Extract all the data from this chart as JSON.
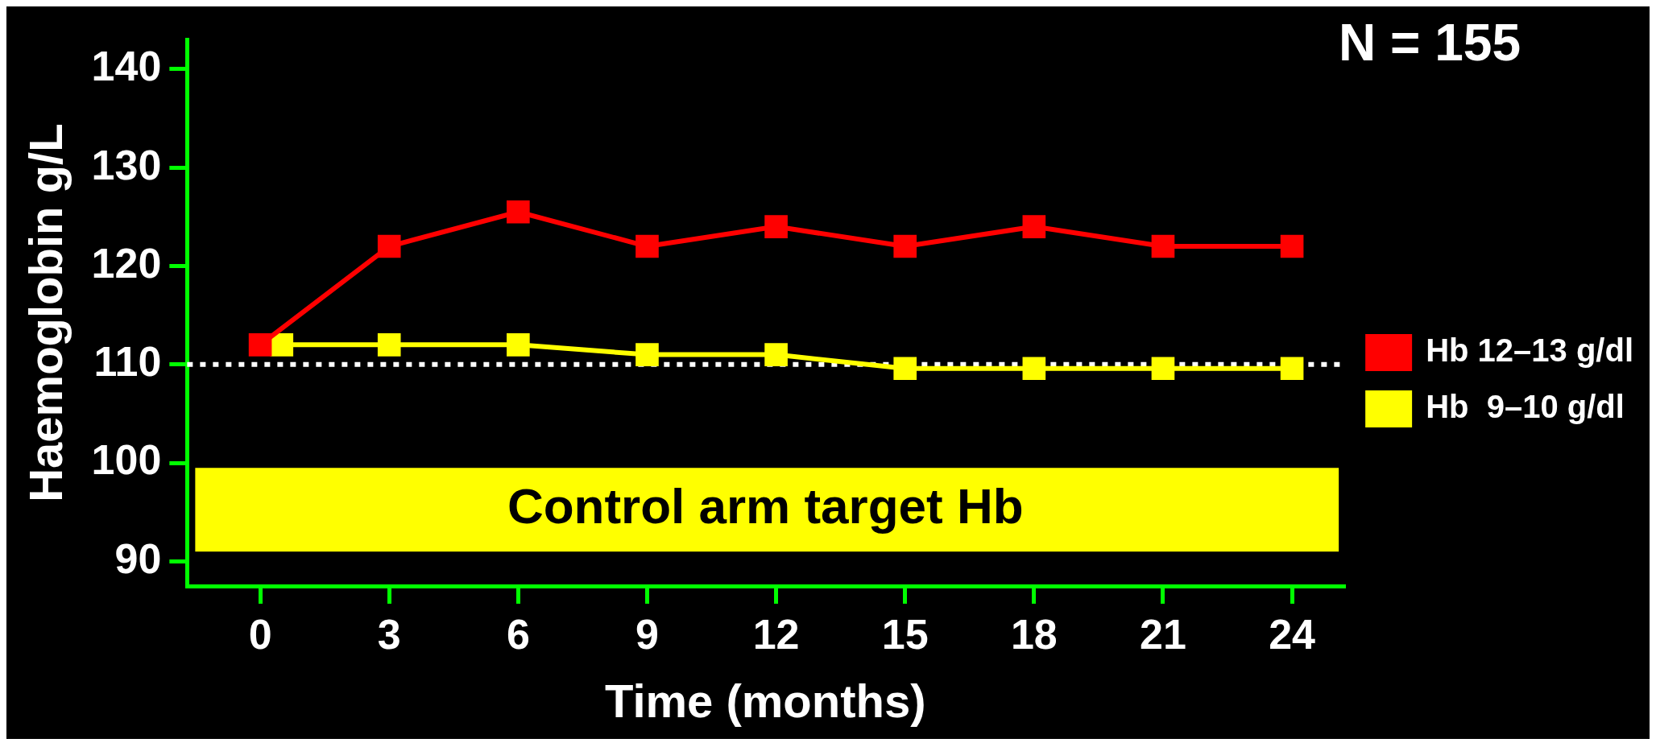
{
  "chart_data": {
    "type": "line",
    "xlabel": "Time (months)",
    "ylabel": "Haemoglobin g/L",
    "x": [
      0,
      3,
      6,
      9,
      12,
      15,
      18,
      21,
      24
    ],
    "series": [
      {
        "name": "Hb 12–13 g/dl",
        "color": "#ff0000",
        "values": [
          112,
          122,
          125.5,
          122,
          124,
          122,
          124,
          122,
          122
        ]
      },
      {
        "name": "Hb  9–10 g/dl",
        "color": "#ffff00",
        "x": [
          0.5,
          3,
          6,
          9,
          12,
          15,
          18,
          21,
          24
        ],
        "values": [
          112,
          112,
          112,
          111,
          111,
          109.6,
          109.6,
          109.6,
          109.6
        ]
      }
    ],
    "xlim": [
      -1.7,
      25.2
    ],
    "xticks": [
      0,
      3,
      6,
      9,
      12,
      15,
      18,
      21,
      24
    ],
    "ylim": [
      87.5,
      143
    ],
    "yticks": [
      90,
      100,
      110,
      120,
      130,
      140
    ],
    "ref_lines": [
      {
        "axis": "y",
        "value": 110,
        "color": "#ffffff",
        "line_style": "dotted"
      }
    ],
    "bands": [
      {
        "axis": "y",
        "from": 91,
        "to": 99.5,
        "label": "Control arm target Hb",
        "color": "#ffff00"
      }
    ],
    "annotations": [
      "N = 155"
    ],
    "legend": "right",
    "marker": "square"
  }
}
